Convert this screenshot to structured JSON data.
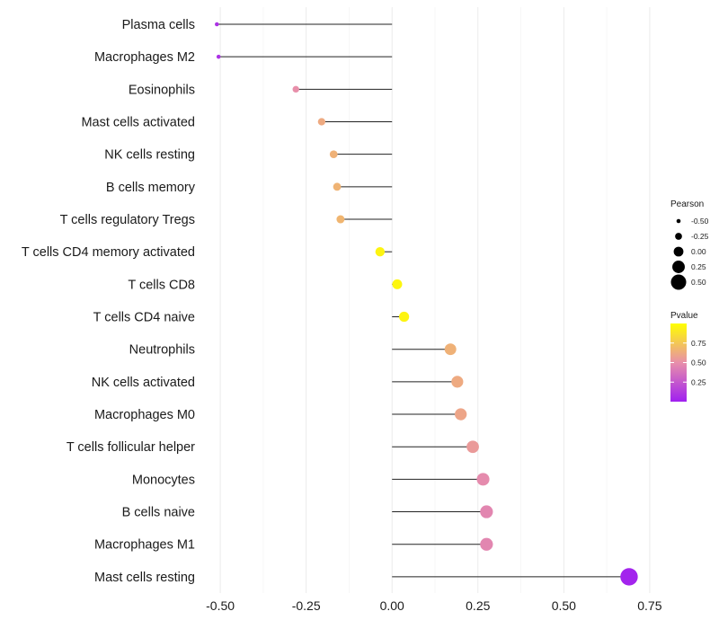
{
  "chart_data": {
    "type": "lollipop",
    "title": "",
    "xlabel": "",
    "ylabel": "",
    "xlim": [
      -0.5,
      0.75
    ],
    "xticks": [
      -0.5,
      -0.25,
      0.0,
      0.25,
      0.5,
      0.75
    ],
    "xtick_labels": [
      "-0.50",
      "-0.25",
      "0.00",
      "0.25",
      "0.50",
      "0.75"
    ],
    "grid": true,
    "baseline": 0.0,
    "categories": [
      "Plasma cells",
      "Macrophages M2",
      "Eosinophils",
      "Mast cells activated",
      "NK cells resting",
      "B cells memory",
      "T cells regulatory  Tregs",
      "T cells CD4 memory activated",
      "T cells CD8",
      "T cells CD4 naive",
      "Neutrophils",
      "NK cells activated",
      "Macrophages M0",
      "T cells follicular helper",
      "Monocytes",
      "B cells naive",
      "Macrophages M1",
      "Mast cells resting"
    ],
    "pearson": [
      -0.51,
      -0.505,
      -0.28,
      -0.205,
      -0.17,
      -0.16,
      -0.15,
      -0.035,
      0.015,
      0.035,
      0.17,
      0.19,
      0.2,
      0.235,
      0.265,
      0.275,
      0.275,
      0.69
    ],
    "pvalue": [
      0.08,
      0.08,
      0.5,
      0.62,
      0.65,
      0.66,
      0.67,
      0.95,
      0.96,
      0.95,
      0.65,
      0.62,
      0.6,
      0.55,
      0.48,
      0.46,
      0.46,
      0.02
    ],
    "size_legend": {
      "title": "Pearson",
      "values": [
        -0.5,
        -0.25,
        0.0,
        0.25,
        0.5
      ],
      "labels": [
        "-0.50",
        "-0.25",
        "0.00",
        "0.25",
        "0.50"
      ]
    },
    "color_legend": {
      "title": "Pvalue",
      "ticks": [
        0.75,
        0.5,
        0.25
      ],
      "tick_labels": [
        "0.75",
        "0.50",
        "0.25"
      ],
      "range": [
        0.0,
        1.0
      ],
      "colors": [
        "#a020f0",
        "#e88faa",
        "#ffff00"
      ]
    }
  }
}
